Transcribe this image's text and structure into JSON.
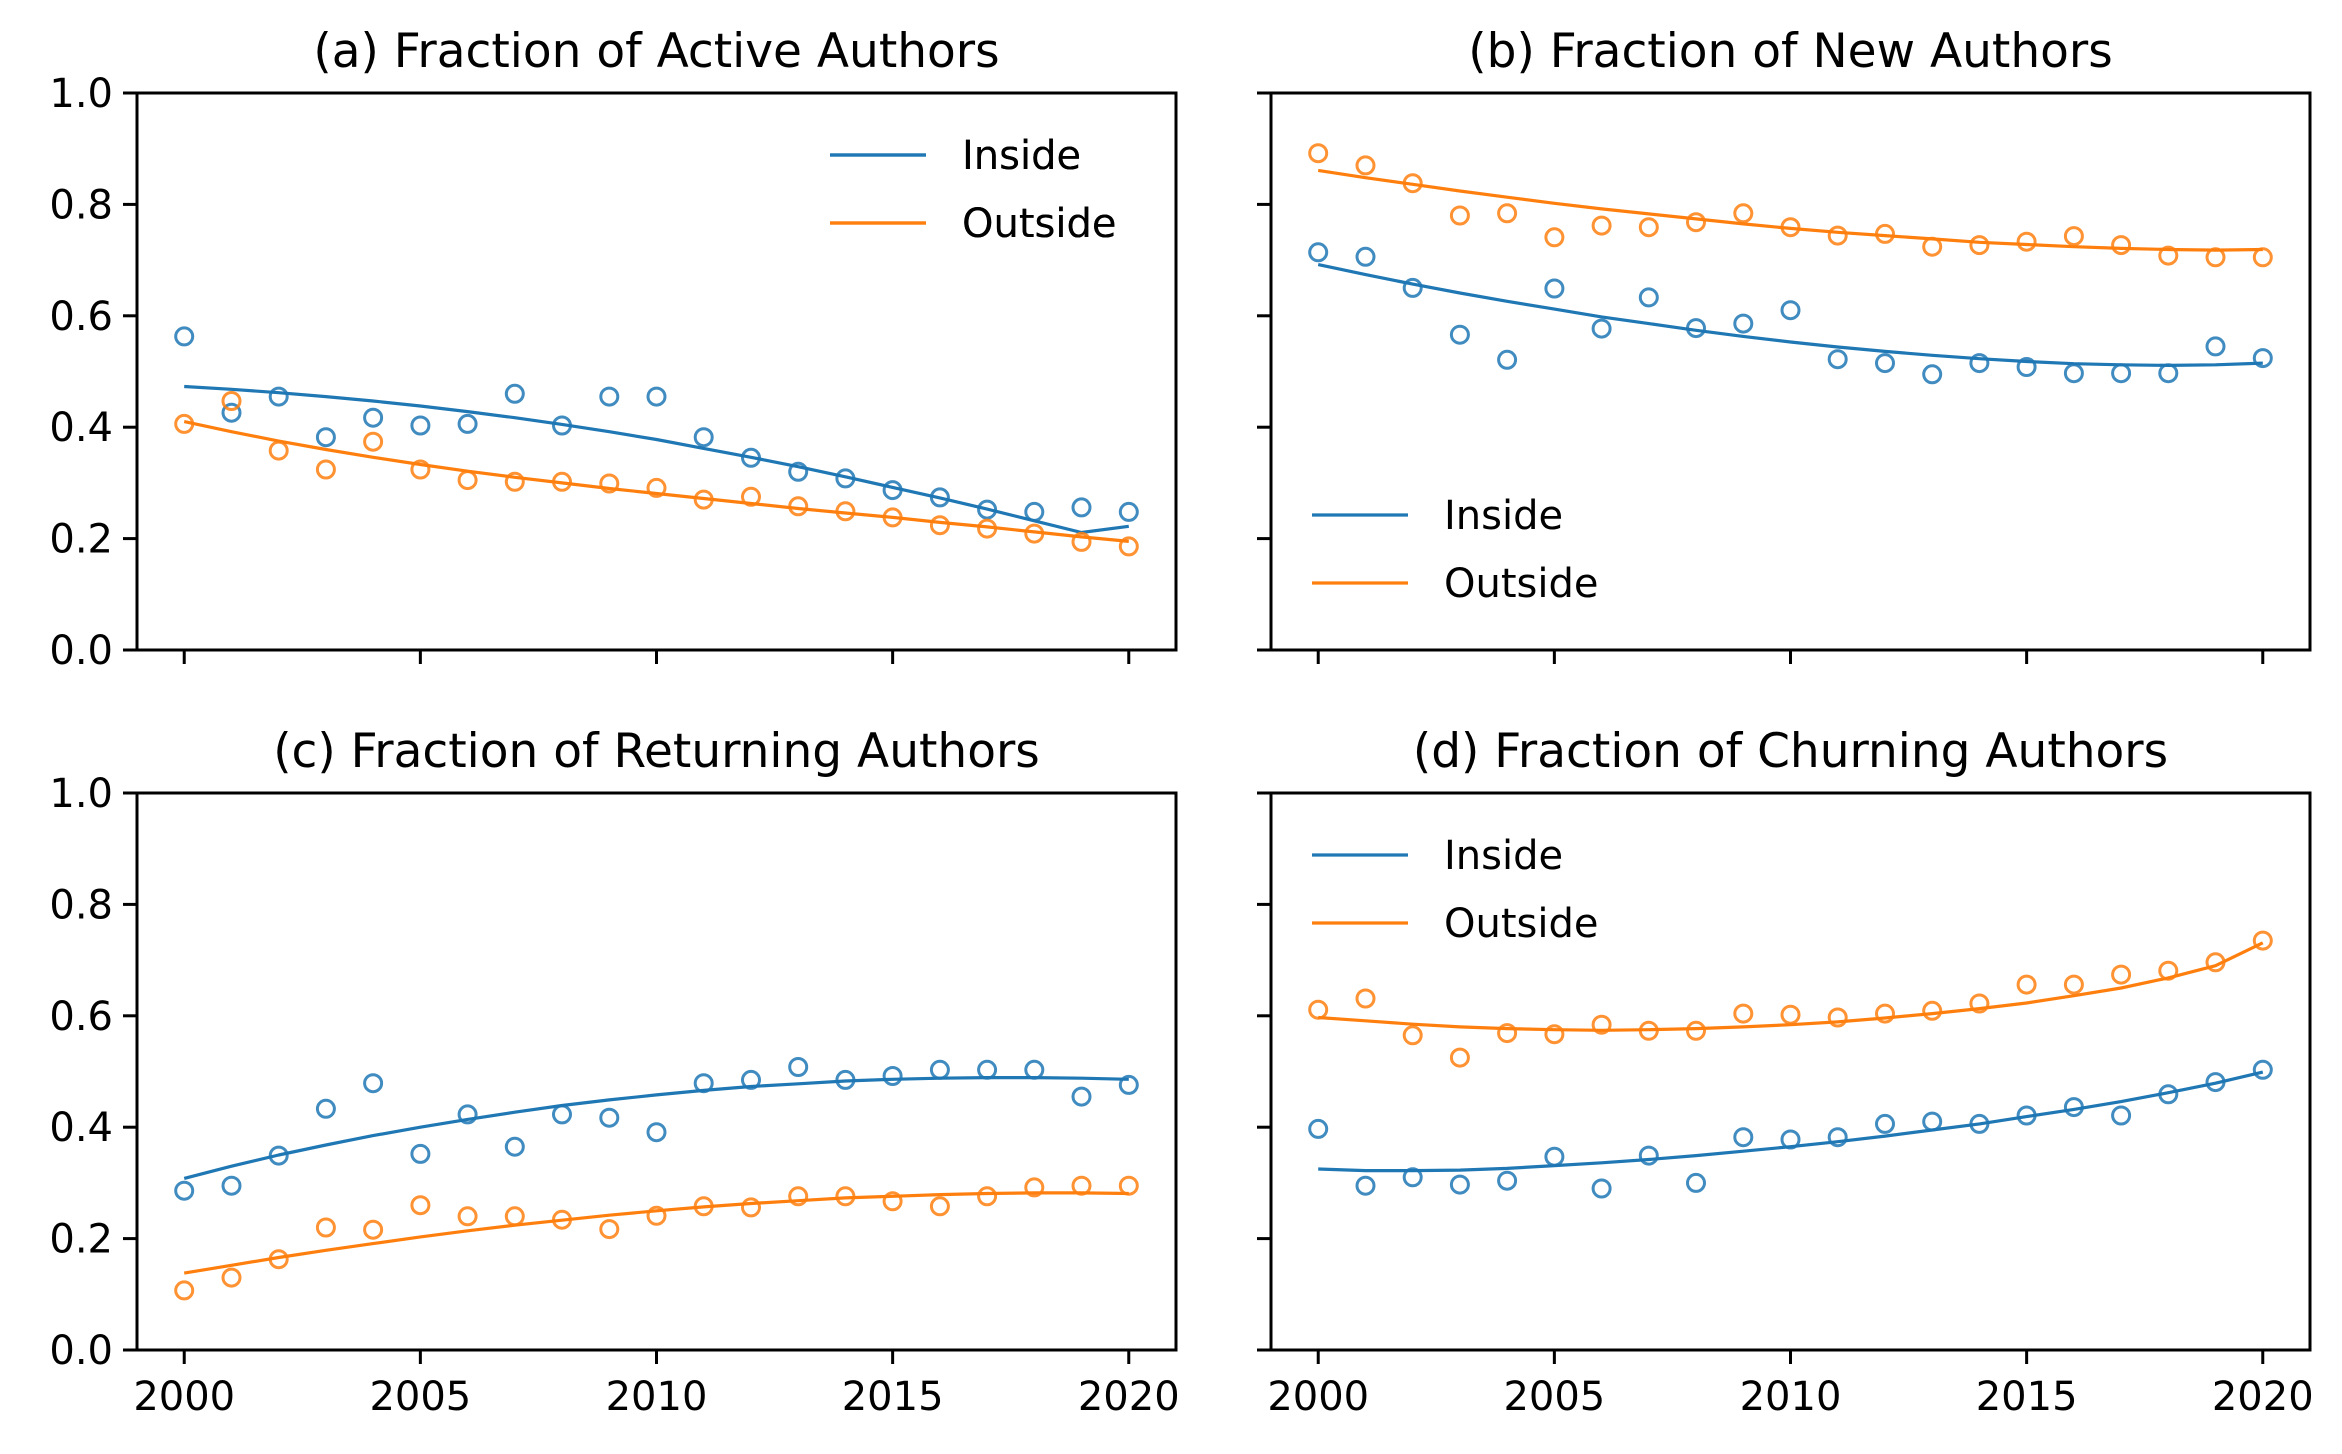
{
  "chart_data": [
    {
      "type": "line",
      "title": "(a) Fraction of Active Authors",
      "xlabel": "",
      "ylabel": "",
      "xlim": [
        1999,
        2021
      ],
      "ylim": [
        0,
        1
      ],
      "xticks": [
        2000,
        2005,
        2010,
        2015,
        2020
      ],
      "yticks": [
        0.0,
        0.2,
        0.4,
        0.6,
        0.8,
        1.0
      ],
      "show_xtick_labels": false,
      "show_ytick_labels": true,
      "legend_position": "top-right",
      "grid": false,
      "x": [
        2000,
        2001,
        2002,
        2003,
        2004,
        2005,
        2006,
        2007,
        2008,
        2009,
        2010,
        2011,
        2012,
        2013,
        2014,
        2015,
        2016,
        2017,
        2018,
        2019,
        2020
      ],
      "series": [
        {
          "name": "Inside",
          "color": "#1f77b4",
          "points": [
            0.563,
            0.426,
            0.455,
            0.382,
            0.417,
            0.403,
            0.406,
            0.46,
            0.403,
            0.455,
            0.455,
            0.382,
            0.345,
            0.32,
            0.308,
            0.287,
            0.274,
            0.252,
            0.248,
            0.256,
            0.248
          ],
          "fit": [
            0.473,
            0.468,
            0.462,
            0.455,
            0.447,
            0.438,
            0.428,
            0.417,
            0.405,
            0.392,
            0.378,
            0.362,
            0.346,
            0.329,
            0.311,
            0.292,
            0.273,
            0.253,
            0.232,
            0.211,
            0.222
          ]
        },
        {
          "name": "Outside",
          "color": "#ff7f0e",
          "points": [
            0.406,
            0.447,
            0.358,
            0.324,
            0.374,
            0.324,
            0.305,
            0.302,
            0.302,
            0.299,
            0.291,
            0.27,
            0.275,
            0.258,
            0.249,
            0.238,
            0.224,
            0.218,
            0.209,
            0.194,
            0.186
          ],
          "fit": [
            0.41,
            0.392,
            0.375,
            0.36,
            0.346,
            0.333,
            0.321,
            0.31,
            0.3,
            0.29,
            0.281,
            0.272,
            0.263,
            0.254,
            0.246,
            0.238,
            0.229,
            0.221,
            0.212,
            0.203,
            0.195
          ]
        }
      ]
    },
    {
      "type": "line",
      "title": "(b) Fraction of New Authors",
      "xlabel": "",
      "ylabel": "",
      "xlim": [
        1999,
        2021
      ],
      "ylim": [
        0,
        1
      ],
      "xticks": [
        2000,
        2005,
        2010,
        2015,
        2020
      ],
      "yticks": [
        0.0,
        0.2,
        0.4,
        0.6,
        0.8,
        1.0
      ],
      "show_xtick_labels": false,
      "show_ytick_labels": false,
      "legend_position": "bottom-left",
      "grid": false,
      "x": [
        2000,
        2001,
        2002,
        2003,
        2004,
        2005,
        2006,
        2007,
        2008,
        2009,
        2010,
        2011,
        2012,
        2013,
        2014,
        2015,
        2016,
        2017,
        2018,
        2019,
        2020
      ],
      "series": [
        {
          "name": "Inside",
          "color": "#1f77b4",
          "points": [
            0.714,
            0.706,
            0.65,
            0.566,
            0.521,
            0.649,
            0.577,
            0.633,
            0.578,
            0.586,
            0.61,
            0.522,
            0.515,
            0.495,
            0.515,
            0.508,
            0.497,
            0.497,
            0.497,
            0.545,
            0.524
          ],
          "fit": [
            0.692,
            0.674,
            0.657,
            0.641,
            0.626,
            0.612,
            0.598,
            0.586,
            0.574,
            0.563,
            0.553,
            0.544,
            0.536,
            0.529,
            0.523,
            0.518,
            0.514,
            0.512,
            0.511,
            0.512,
            0.515
          ]
        },
        {
          "name": "Outside",
          "color": "#ff7f0e",
          "points": [
            0.892,
            0.87,
            0.838,
            0.78,
            0.784,
            0.741,
            0.762,
            0.759,
            0.768,
            0.784,
            0.759,
            0.744,
            0.747,
            0.724,
            0.727,
            0.733,
            0.743,
            0.727,
            0.708,
            0.705,
            0.705
          ],
          "fit": [
            0.861,
            0.848,
            0.836,
            0.824,
            0.813,
            0.802,
            0.792,
            0.783,
            0.774,
            0.765,
            0.757,
            0.75,
            0.744,
            0.738,
            0.732,
            0.728,
            0.724,
            0.721,
            0.719,
            0.718,
            0.719
          ]
        }
      ]
    },
    {
      "type": "line",
      "title": "(c) Fraction of Returning Authors",
      "xlabel": "",
      "ylabel": "",
      "xlim": [
        1999,
        2021
      ],
      "ylim": [
        0,
        1
      ],
      "xticks": [
        2000,
        2005,
        2010,
        2015,
        2020
      ],
      "yticks": [
        0.0,
        0.2,
        0.4,
        0.6,
        0.8,
        1.0
      ],
      "show_xtick_labels": true,
      "show_ytick_labels": true,
      "legend_position": "top-right",
      "grid": false,
      "x": [
        2000,
        2001,
        2002,
        2003,
        2004,
        2005,
        2006,
        2007,
        2008,
        2009,
        2010,
        2011,
        2012,
        2013,
        2014,
        2015,
        2016,
        2017,
        2018,
        2019,
        2020
      ],
      "series": [
        {
          "name": "Inside",
          "color": "#1f77b4",
          "points": [
            0.286,
            0.295,
            0.349,
            0.433,
            0.479,
            0.352,
            0.423,
            0.365,
            0.423,
            0.417,
            0.391,
            0.479,
            0.485,
            0.508,
            0.485,
            0.492,
            0.503,
            0.503,
            0.503,
            0.455,
            0.476
          ],
          "fit": [
            0.308,
            0.33,
            0.35,
            0.368,
            0.385,
            0.4,
            0.414,
            0.427,
            0.439,
            0.449,
            0.458,
            0.466,
            0.473,
            0.478,
            0.483,
            0.486,
            0.488,
            0.489,
            0.489,
            0.488,
            0.486
          ]
        },
        {
          "name": "Outside",
          "color": "#ff7f0e",
          "points": [
            0.107,
            0.13,
            0.163,
            0.22,
            0.216,
            0.26,
            0.24,
            0.24,
            0.234,
            0.217,
            0.241,
            0.258,
            0.256,
            0.276,
            0.276,
            0.267,
            0.258,
            0.276,
            0.292,
            0.295,
            0.295
          ],
          "fit": [
            0.138,
            0.152,
            0.166,
            0.179,
            0.191,
            0.203,
            0.214,
            0.224,
            0.233,
            0.242,
            0.25,
            0.257,
            0.263,
            0.268,
            0.273,
            0.276,
            0.279,
            0.281,
            0.282,
            0.282,
            0.281
          ]
        }
      ]
    },
    {
      "type": "line",
      "title": "(d) Fraction of Churning Authors",
      "xlabel": "",
      "ylabel": "",
      "xlim": [
        1999,
        2021
      ],
      "ylim": [
        0,
        1
      ],
      "xticks": [
        2000,
        2005,
        2010,
        2015,
        2020
      ],
      "yticks": [
        0.0,
        0.2,
        0.4,
        0.6,
        0.8,
        1.0
      ],
      "show_xtick_labels": true,
      "show_ytick_labels": false,
      "legend_position": "top-left",
      "grid": false,
      "x": [
        2000,
        2001,
        2002,
        2003,
        2004,
        2005,
        2006,
        2007,
        2008,
        2009,
        2010,
        2011,
        2012,
        2013,
        2014,
        2015,
        2016,
        2017,
        2018,
        2019,
        2020
      ],
      "series": [
        {
          "name": "Inside",
          "color": "#1f77b4",
          "points": [
            0.397,
            0.295,
            0.31,
            0.297,
            0.304,
            0.347,
            0.29,
            0.349,
            0.3,
            0.382,
            0.378,
            0.382,
            0.406,
            0.41,
            0.406,
            0.421,
            0.436,
            0.421,
            0.459,
            0.481,
            0.503
          ],
          "fit": [
            0.325,
            0.322,
            0.322,
            0.323,
            0.326,
            0.331,
            0.336,
            0.342,
            0.349,
            0.357,
            0.365,
            0.374,
            0.384,
            0.395,
            0.406,
            0.419,
            0.432,
            0.446,
            0.462,
            0.479,
            0.499
          ]
        },
        {
          "name": "Outside",
          "color": "#ff7f0e",
          "points": [
            0.611,
            0.631,
            0.565,
            0.525,
            0.569,
            0.567,
            0.584,
            0.573,
            0.573,
            0.604,
            0.602,
            0.597,
            0.604,
            0.609,
            0.622,
            0.656,
            0.656,
            0.674,
            0.681,
            0.696,
            0.735
          ],
          "fit": [
            0.597,
            0.591,
            0.585,
            0.58,
            0.577,
            0.575,
            0.574,
            0.575,
            0.577,
            0.58,
            0.584,
            0.589,
            0.596,
            0.604,
            0.613,
            0.623,
            0.636,
            0.65,
            0.668,
            0.69,
            0.731
          ]
        }
      ]
    }
  ]
}
